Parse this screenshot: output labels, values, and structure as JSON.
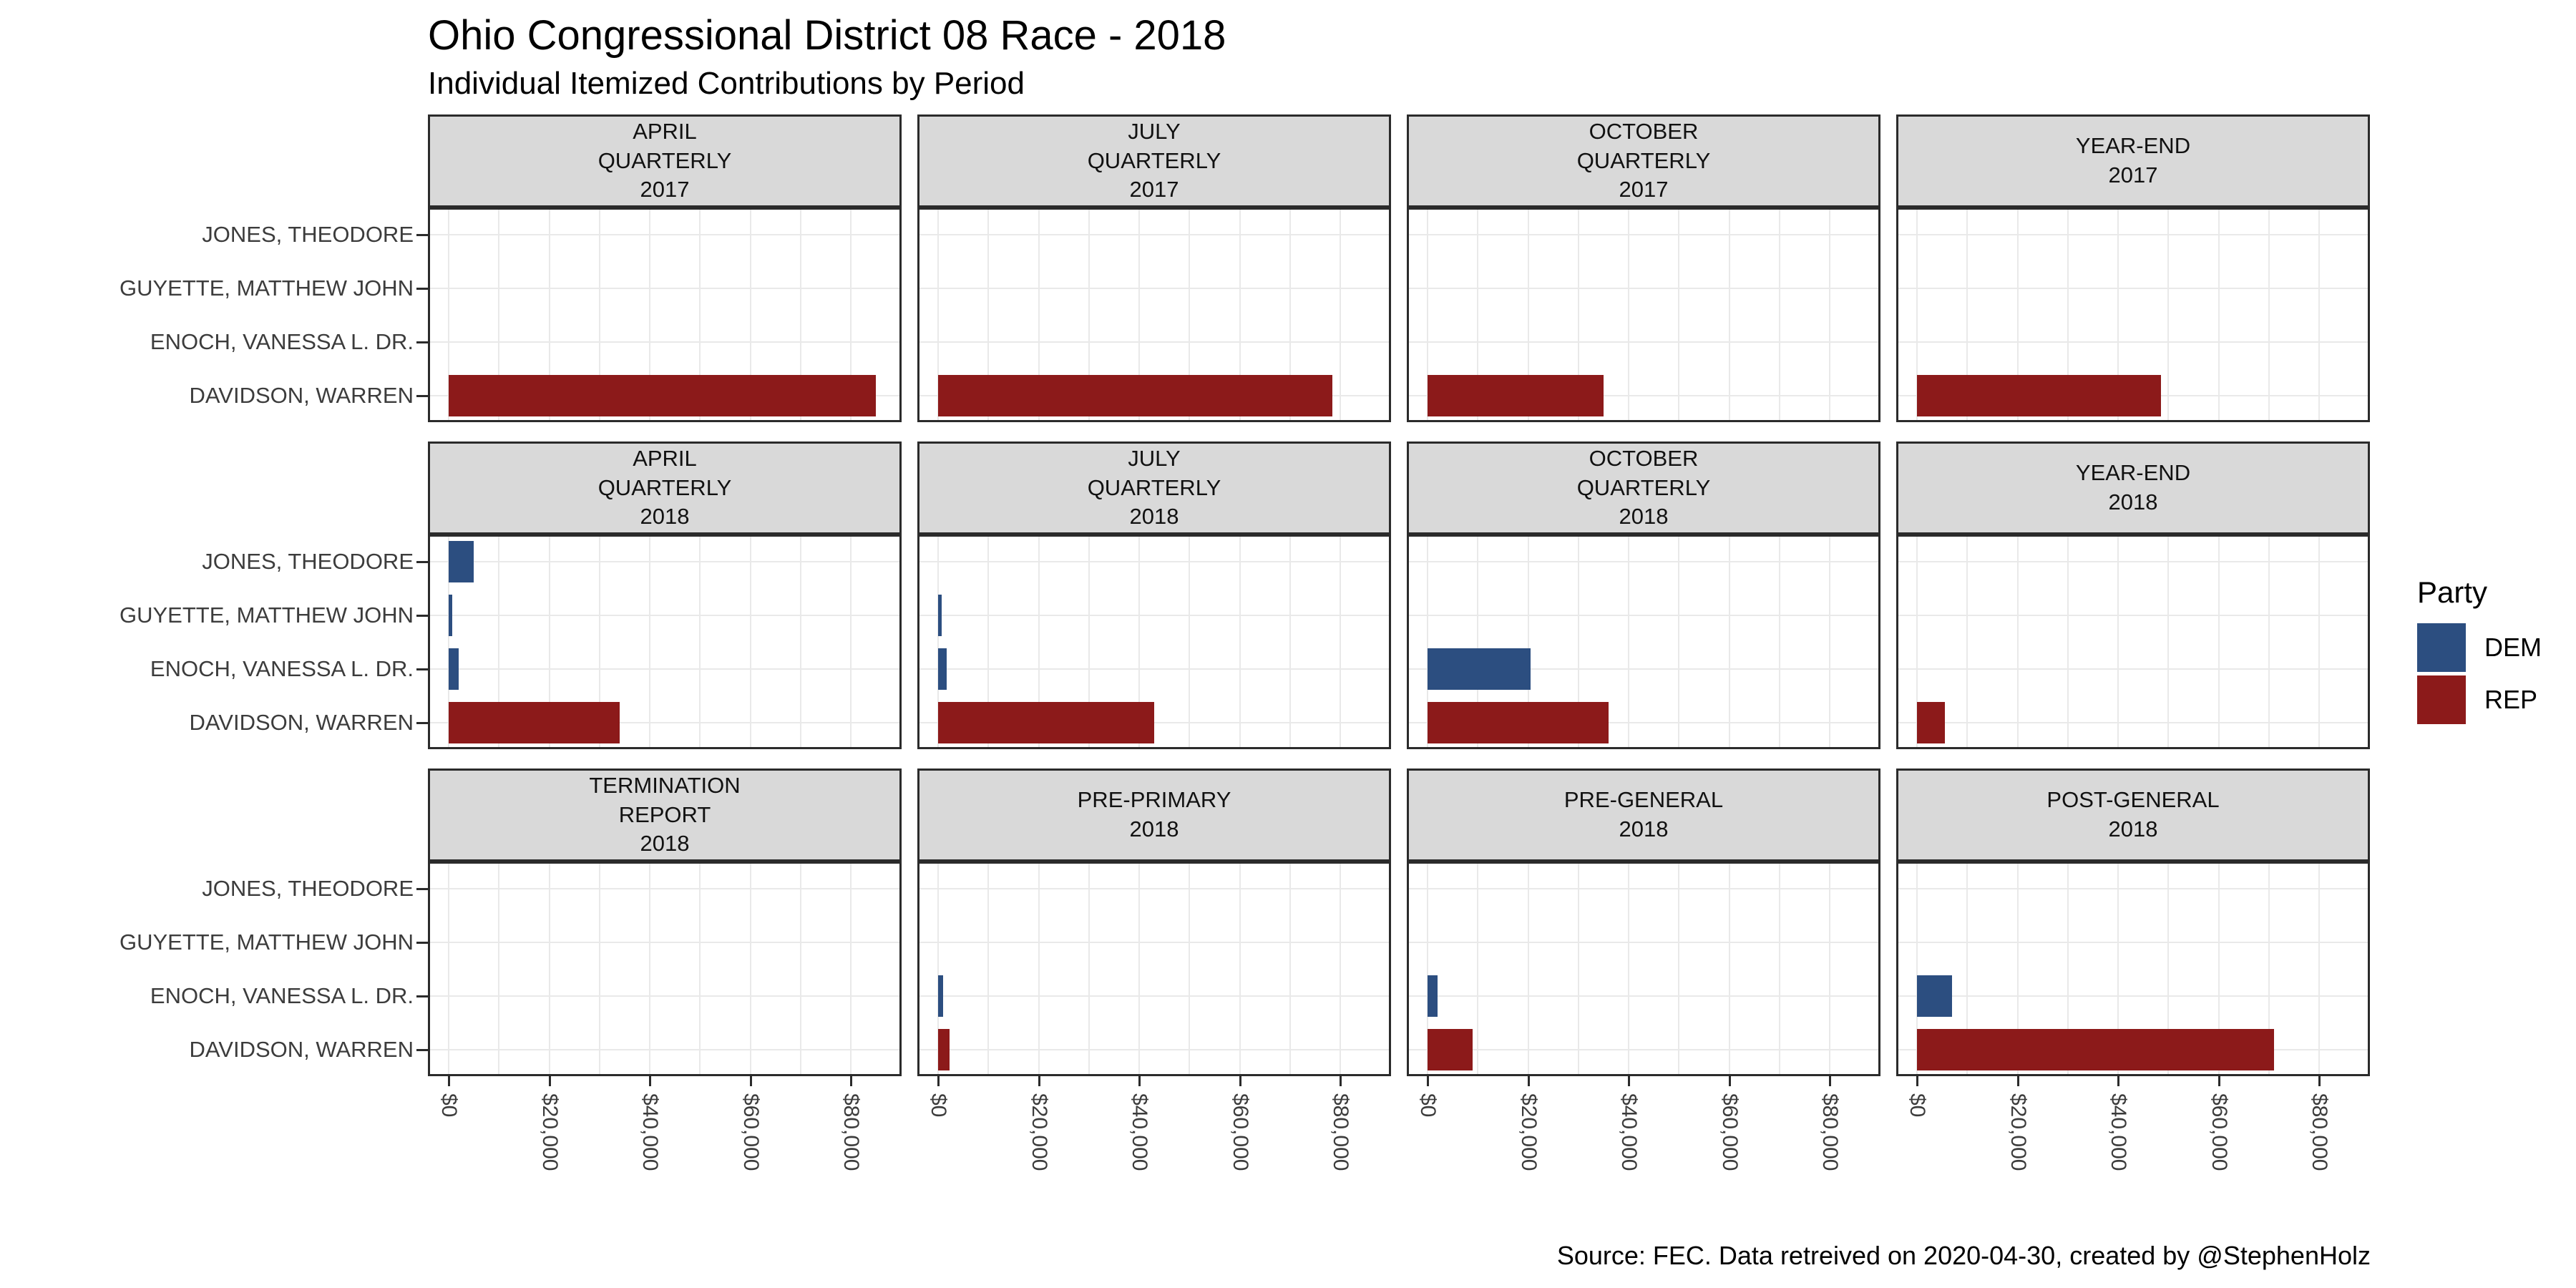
{
  "page": {
    "title": "Ohio Congressional District 08 Race - 2018",
    "subtitle": "Individual Itemized Contributions by Period",
    "caption": "Source: FEC. Data retreived on 2020-04-30, created by @StephenHolz"
  },
  "legend": {
    "title": "Party",
    "items": [
      {
        "label": "DEM",
        "color": "#2C4E80"
      },
      {
        "label": "REP",
        "color": "#8C1A1A"
      }
    ]
  },
  "colors": {
    "dem": "#2C4E80",
    "rep": "#8C1A1A",
    "strip_bg": "#D9D9D9",
    "panel_border": "#2B2B2B",
    "gridline": "#E9E9E9",
    "axis_text": "#3C3C3C"
  },
  "y_axis": {
    "candidates": [
      "JONES, THEODORE",
      "GUYETTE, MATTHEW JOHN",
      "ENOCH, VANESSA L. DR.",
      "DAVIDSON, WARREN"
    ]
  },
  "x_axis": {
    "tick_labels": [
      "$0",
      "$20,000",
      "$40,000",
      "$60,000",
      "$80,000"
    ],
    "tick_values": [
      0,
      20000,
      40000,
      60000,
      80000
    ],
    "domain": [
      0,
      90000
    ],
    "gridline_step": 10000
  },
  "chart_data": {
    "type": "bar",
    "orientation": "horizontal",
    "title": "Ohio Congressional District 08 Race - 2018",
    "subtitle": "Individual Itemized Contributions by Period",
    "legend_position": "right",
    "grid": "on",
    "facet_layout": {
      "rows": 3,
      "cols": 4
    },
    "categories": [
      "JONES, THEODORE",
      "GUYETTE, MATTHEW JOHN",
      "ENOCH, VANESSA L. DR.",
      "DAVIDSON, WARREN"
    ],
    "xlim": [
      0,
      90000
    ],
    "facets": [
      {
        "strip_lines": [
          "APRIL",
          "QUARTERLY",
          "2017"
        ],
        "bars": [
          {
            "candidate": "DAVIDSON, WARREN",
            "party": "REP",
            "value": 85000
          }
        ]
      },
      {
        "strip_lines": [
          "JULY",
          "QUARTERLY",
          "2017"
        ],
        "bars": [
          {
            "candidate": "DAVIDSON, WARREN",
            "party": "REP",
            "value": 78500
          }
        ]
      },
      {
        "strip_lines": [
          "OCTOBER",
          "QUARTERLY",
          "2017"
        ],
        "bars": [
          {
            "candidate": "DAVIDSON, WARREN",
            "party": "REP",
            "value": 35000
          }
        ]
      },
      {
        "strip_lines": [
          "YEAR-END",
          "2017"
        ],
        "bars": [
          {
            "candidate": "DAVIDSON, WARREN",
            "party": "REP",
            "value": 48500
          }
        ]
      },
      {
        "strip_lines": [
          "APRIL",
          "QUARTERLY",
          "2018"
        ],
        "bars": [
          {
            "candidate": "JONES, THEODORE",
            "party": "DEM",
            "value": 5000
          },
          {
            "candidate": "GUYETTE, MATTHEW JOHN",
            "party": "DEM",
            "value": 700
          },
          {
            "candidate": "ENOCH, VANESSA L. DR.",
            "party": "DEM",
            "value": 2000
          },
          {
            "candidate": "DAVIDSON, WARREN",
            "party": "REP",
            "value": 34000
          }
        ]
      },
      {
        "strip_lines": [
          "JULY",
          "QUARTERLY",
          "2018"
        ],
        "bars": [
          {
            "candidate": "GUYETTE, MATTHEW JOHN",
            "party": "DEM",
            "value": 700
          },
          {
            "candidate": "ENOCH, VANESSA L. DR.",
            "party": "DEM",
            "value": 1700
          },
          {
            "candidate": "DAVIDSON, WARREN",
            "party": "REP",
            "value": 43000
          }
        ]
      },
      {
        "strip_lines": [
          "OCTOBER",
          "QUARTERLY",
          "2018"
        ],
        "bars": [
          {
            "candidate": "ENOCH, VANESSA L. DR.",
            "party": "DEM",
            "value": 20500
          },
          {
            "candidate": "DAVIDSON, WARREN",
            "party": "REP",
            "value": 36000
          }
        ]
      },
      {
        "strip_lines": [
          "YEAR-END",
          "2018"
        ],
        "bars": [
          {
            "candidate": "DAVIDSON, WARREN",
            "party": "REP",
            "value": 5500
          }
        ]
      },
      {
        "strip_lines": [
          "TERMINATION",
          "REPORT",
          "2018"
        ],
        "bars": []
      },
      {
        "strip_lines": [
          "PRE-PRIMARY",
          "2018"
        ],
        "bars": [
          {
            "candidate": "ENOCH, VANESSA L. DR.",
            "party": "DEM",
            "value": 1000
          },
          {
            "candidate": "DAVIDSON, WARREN",
            "party": "REP",
            "value": 2300
          }
        ]
      },
      {
        "strip_lines": [
          "PRE-GENERAL",
          "2018"
        ],
        "bars": [
          {
            "candidate": "ENOCH, VANESSA L. DR.",
            "party": "DEM",
            "value": 2000
          },
          {
            "candidate": "DAVIDSON, WARREN",
            "party": "REP",
            "value": 9000
          }
        ]
      },
      {
        "strip_lines": [
          "POST-GENERAL",
          "2018"
        ],
        "bars": [
          {
            "candidate": "ENOCH, VANESSA L. DR.",
            "party": "DEM",
            "value": 7000
          },
          {
            "candidate": "DAVIDSON, WARREN",
            "party": "REP",
            "value": 71000
          }
        ]
      }
    ]
  }
}
